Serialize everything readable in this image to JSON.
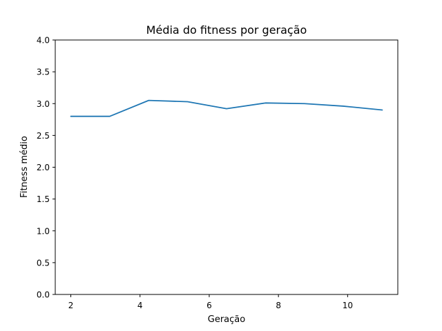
{
  "chart_data": {
    "type": "line",
    "title": "Média do fitness por geração",
    "xlabel": "Geração",
    "ylabel": "Fitness médio",
    "xlim": [
      1.55,
      11.45
    ],
    "ylim": [
      0.0,
      4.0
    ],
    "xticks": [
      2,
      4,
      6,
      8,
      10
    ],
    "yticks": [
      0.0,
      0.5,
      1.0,
      1.5,
      2.0,
      2.5,
      3.0,
      3.5,
      4.0
    ],
    "xtick_labels": [
      "2",
      "4",
      "6",
      "8",
      "10"
    ],
    "ytick_labels": [
      "0.0",
      "0.5",
      "1.0",
      "1.5",
      "2.0",
      "2.5",
      "3.0",
      "3.5",
      "4.0"
    ],
    "grid": false,
    "legend": "none",
    "series": [
      {
        "color": "#1f77b4",
        "x": [
          2.0,
          3.125,
          4.25,
          5.375,
          6.5,
          7.625,
          8.75,
          9.875,
          11.0
        ],
        "y": [
          2.8,
          2.8,
          3.05,
          3.03,
          2.92,
          3.01,
          3.0,
          2.96,
          2.9
        ]
      }
    ]
  }
}
